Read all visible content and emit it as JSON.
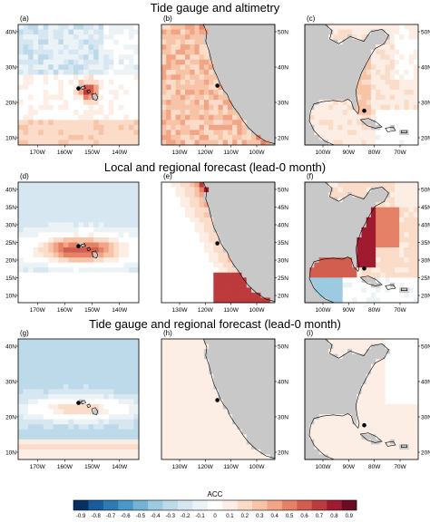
{
  "chart_data": [
    {
      "type": "heatmap",
      "row_titles": [
        "Tide gauge and altimetry",
        "Local and regional forecast (lead-0 month)",
        "Tide gauge and regional forecast (lead-0 month)"
      ],
      "panels": [
        {
          "id": "a",
          "label": "(a)",
          "region": "hawaii",
          "row": 0,
          "col": 0,
          "pattern": "a",
          "xticks": [
            "170W",
            "160W",
            "150W",
            "140W"
          ],
          "yticks": [
            "40N",
            "30N",
            "20N",
            "10N"
          ],
          "station": {
            "lon": -158,
            "lat": 21.3
          }
        },
        {
          "id": "b",
          "label": "(b)",
          "region": "us-west",
          "row": 0,
          "col": 1,
          "pattern": "b",
          "xticks": [
            "130W",
            "120W",
            "110W",
            "100W"
          ],
          "yticks": [
            "50N",
            "40N",
            "30N",
            "20N"
          ],
          "station": {
            "lon": -118.3,
            "lat": 33.7
          }
        },
        {
          "id": "c",
          "label": "(c)",
          "region": "us-east",
          "row": 0,
          "col": 2,
          "pattern": "c",
          "xticks": [
            "100W",
            "90W",
            "80W",
            "70W"
          ],
          "yticks": [
            "50N",
            "40N",
            "30N",
            "20N"
          ],
          "station": {
            "lon": -80.1,
            "lat": 25.8
          }
        },
        {
          "id": "d",
          "label": "(d)",
          "region": "hawaii",
          "row": 1,
          "col": 0,
          "pattern": "d",
          "xticks": [
            "170W",
            "160W",
            "150W",
            "140W"
          ],
          "yticks": [
            "40N",
            "35N",
            "30N",
            "25N",
            "20N",
            "15N",
            "10N"
          ],
          "station": {
            "lon": -158,
            "lat": 21.3
          }
        },
        {
          "id": "e",
          "label": "(e)",
          "region": "us-west",
          "row": 1,
          "col": 1,
          "pattern": "e",
          "xticks": [
            "130W",
            "120W",
            "110W",
            "100W"
          ],
          "yticks": [
            "50N",
            "45N",
            "40N",
            "35N",
            "30N",
            "25N",
            "20N"
          ],
          "station": {
            "lon": -118.3,
            "lat": 33.7
          }
        },
        {
          "id": "f",
          "label": "(f)",
          "region": "us-east",
          "row": 1,
          "col": 2,
          "pattern": "f",
          "xticks": [
            "100W",
            "90W",
            "80W",
            "70W"
          ],
          "yticks": [
            "50N",
            "45N",
            "40N",
            "35N",
            "30N",
            "25N",
            "20N"
          ],
          "station": {
            "lon": -80.1,
            "lat": 25.8
          }
        },
        {
          "id": "g",
          "label": "(g)",
          "region": "hawaii",
          "row": 2,
          "col": 0,
          "pattern": "g",
          "xticks": [
            "170W",
            "160W",
            "150W",
            "140W"
          ],
          "yticks": [
            "40N",
            "30N",
            "20N",
            "10N"
          ],
          "station": {
            "lon": -158,
            "lat": 21.3
          }
        },
        {
          "id": "h",
          "label": "(h)",
          "region": "us-west",
          "row": 2,
          "col": 1,
          "pattern": "h",
          "xticks": [
            "130W",
            "120W",
            "110W",
            "100W"
          ],
          "yticks": [
            "50N",
            "40N",
            "30N",
            "20N"
          ],
          "station": {
            "lon": -118.3,
            "lat": 33.7
          }
        },
        {
          "id": "i",
          "label": "(i)",
          "region": "us-east",
          "row": 2,
          "col": 2,
          "pattern": "i",
          "xticks": [
            "100W",
            "90W",
            "80W",
            "70W"
          ],
          "yticks": [
            "50N",
            "40N",
            "30N",
            "20N"
          ],
          "station": {
            "lon": -80.1,
            "lat": 25.8
          }
        }
      ],
      "colorbar": {
        "title": "ACC",
        "levels": [
          "-0.9",
          "-0.8",
          "-0.7",
          "-0.6",
          "-0.5",
          "-0.4",
          "-0.3",
          "-0.2",
          "-0.1",
          "0",
          "0.1",
          "0.2",
          "0.3",
          "0.4",
          "0.5",
          "0.6",
          "0.7",
          "0.8",
          "0.9"
        ],
        "colors": [
          "#053061",
          "#185c9e",
          "#2f79b5",
          "#4a98c9",
          "#75b2d5",
          "#9ccae1",
          "#bcdaea",
          "#d6e7f1",
          "#ecf3f7",
          "#ffffff",
          "#fceee4",
          "#fbdcc9",
          "#f8c4a8",
          "#f1a486",
          "#e48167",
          "#d25e4f",
          "#bd3a3d",
          "#a01a30",
          "#6b0d22"
        ]
      },
      "colors": {
        "land": "#c8c8c8",
        "coast": "#000000",
        "station": "#000000"
      }
    }
  ]
}
